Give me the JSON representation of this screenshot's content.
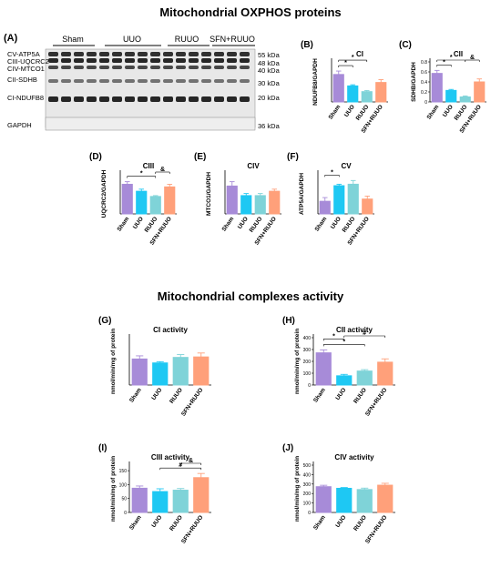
{
  "headings": {
    "oxphos": "Mitochondrial OXPHOS proteins",
    "activity": "Mitochondrial complexes activity"
  },
  "blot": {
    "panel_label": "(A)",
    "groups": [
      "Sham",
      "UUO",
      "RUUO",
      "SFN+RUUO"
    ],
    "band_labels": [
      "CV-ATP5A",
      "CIII-UQCRC2",
      "CIV-MTCO1",
      "CII-SDHB",
      "CI-NDUFB8",
      "GAPDH"
    ],
    "kda_labels": [
      "55 kDa",
      "48 kDa",
      "40 kDa",
      "30 kDa",
      "20 kDa",
      "36 kDa"
    ]
  },
  "colors": {
    "Sham": "#a78bd8",
    "UUO": "#1ec8f3",
    "RUUO": "#7fd3d8",
    "SFN+RUUO": "#ffa07a"
  },
  "chart_data": [
    {
      "id": "B",
      "label": "(B)",
      "type": "bar",
      "title": "CI",
      "ylabel": "NDUFB8/GAPDH",
      "categories": [
        "Sham",
        "UUO",
        "RUUO",
        "SFN+RUUO"
      ],
      "values": [
        2.4,
        1.4,
        0.9,
        1.7
      ],
      "errors": [
        0.3,
        0.1,
        0.1,
        0.25
      ],
      "ylim": [
        0,
        3.5
      ],
      "yticks": [],
      "sig": [
        {
          "from": 0,
          "to": 1,
          "text": "*"
        },
        {
          "from": 0,
          "to": 2,
          "text": "*"
        }
      ]
    },
    {
      "id": "C",
      "label": "(C)",
      "type": "bar",
      "title": "CII",
      "ylabel": "SDHB/GAPDH",
      "categories": [
        "Sham",
        "UUO",
        "RUUO",
        "SFN+RUUO"
      ],
      "values": [
        0.57,
        0.23,
        0.1,
        0.4
      ],
      "errors": [
        0.06,
        0.02,
        0.02,
        0.06
      ],
      "ylim": [
        0,
        0.8
      ],
      "yticks": [
        0,
        0.2,
        0.4,
        0.6,
        0.8
      ],
      "sig": [
        {
          "from": 0,
          "to": 1,
          "text": "*"
        },
        {
          "from": 0,
          "to": 2,
          "text": "*"
        },
        {
          "from": 2,
          "to": 3,
          "text": "&"
        }
      ]
    },
    {
      "id": "D",
      "label": "(D)",
      "type": "bar",
      "title": "CIII",
      "ylabel": "UQCRC2/GAPDH",
      "categories": [
        "Sham",
        "UUO",
        "RUUO",
        "SFN+RUUO"
      ],
      "values": [
        1.7,
        1.3,
        1.0,
        1.55
      ],
      "errors": [
        0.15,
        0.12,
        0.05,
        0.15
      ],
      "ylim": [
        0,
        2.3
      ],
      "yticks": [],
      "sig": [
        {
          "from": 0,
          "to": 2,
          "text": "*"
        },
        {
          "from": 2,
          "to": 3,
          "text": "&"
        }
      ]
    },
    {
      "id": "E",
      "label": "(E)",
      "type": "bar",
      "title": "CIV",
      "ylabel": "MTCO1/GAPDH",
      "categories": [
        "Sham",
        "UUO",
        "RUUO",
        "SFN+RUUO"
      ],
      "values": [
        1.6,
        1.05,
        1.05,
        1.3
      ],
      "errors": [
        0.25,
        0.12,
        0.12,
        0.12
      ],
      "ylim": [
        0,
        2.3
      ],
      "yticks": [],
      "sig": []
    },
    {
      "id": "F",
      "label": "(F)",
      "type": "bar",
      "title": "CV",
      "ylabel": "ATP5A/GAPDH",
      "categories": [
        "Sham",
        "UUO",
        "RUUO",
        "SFN+RUUO"
      ],
      "values": [
        0.85,
        1.9,
        2.0,
        1.0
      ],
      "errors": [
        0.25,
        0.1,
        0.25,
        0.2
      ],
      "ylim": [
        0,
        2.7
      ],
      "yticks": [],
      "sig": [
        {
          "from": 0,
          "to": 1,
          "text": "*"
        }
      ]
    },
    {
      "id": "G",
      "label": "(G)",
      "type": "bar",
      "title": "CI activity",
      "ylabel": "nmol/min/mg of protein",
      "categories": [
        "Sham",
        "UUO",
        "RUUO",
        "SFN+RUUO"
      ],
      "values": [
        165,
        140,
        175,
        178
      ],
      "errors": [
        20,
        8,
        18,
        25
      ],
      "ylim": [
        0,
        300
      ],
      "yticks": [],
      "sig": []
    },
    {
      "id": "H",
      "label": "(H)",
      "type": "bar",
      "title": "CII activity",
      "ylabel": "nmol/min/mg of protein",
      "categories": [
        "Sham",
        "UUO",
        "RUUO",
        "SFN+RUUO"
      ],
      "values": [
        272,
        78,
        118,
        193
      ],
      "errors": [
        25,
        12,
        12,
        28
      ],
      "ylim": [
        0,
        400
      ],
      "yticks": [
        0,
        100,
        200,
        300,
        400
      ],
      "sig": [
        {
          "from": 0,
          "to": 2,
          "text": "*"
        },
        {
          "from": 0,
          "to": 1,
          "text": "*"
        },
        {
          "from": 1,
          "to": 3,
          "text": "#"
        }
      ]
    },
    {
      "id": "I",
      "label": "(I)",
      "type": "bar",
      "title": "CIII activity",
      "ylabel": "nmol/min/mg of protein",
      "categories": [
        "Sham",
        "UUO",
        "RUUO",
        "SFN+RUUO"
      ],
      "values": [
        87,
        75,
        80,
        125
      ],
      "errors": [
        8,
        10,
        6,
        15
      ],
      "ylim": [
        0,
        170
      ],
      "yticks": [
        0,
        50,
        100,
        150
      ],
      "sig": [
        {
          "from": 1,
          "to": 3,
          "text": "#"
        },
        {
          "from": 2,
          "to": 3,
          "text": "&"
        }
      ]
    },
    {
      "id": "J",
      "label": "(J)",
      "type": "bar",
      "title": "CIV activity",
      "ylabel": "nmol/min/mg of protein",
      "categories": [
        "Sham",
        "UUO",
        "RUUO",
        "SFN+RUUO"
      ],
      "values": [
        272,
        255,
        242,
        288
      ],
      "errors": [
        15,
        8,
        15,
        20
      ],
      "ylim": [
        0,
        500
      ],
      "yticks": [
        0,
        100,
        200,
        300,
        400,
        500
      ],
      "sig": []
    }
  ]
}
